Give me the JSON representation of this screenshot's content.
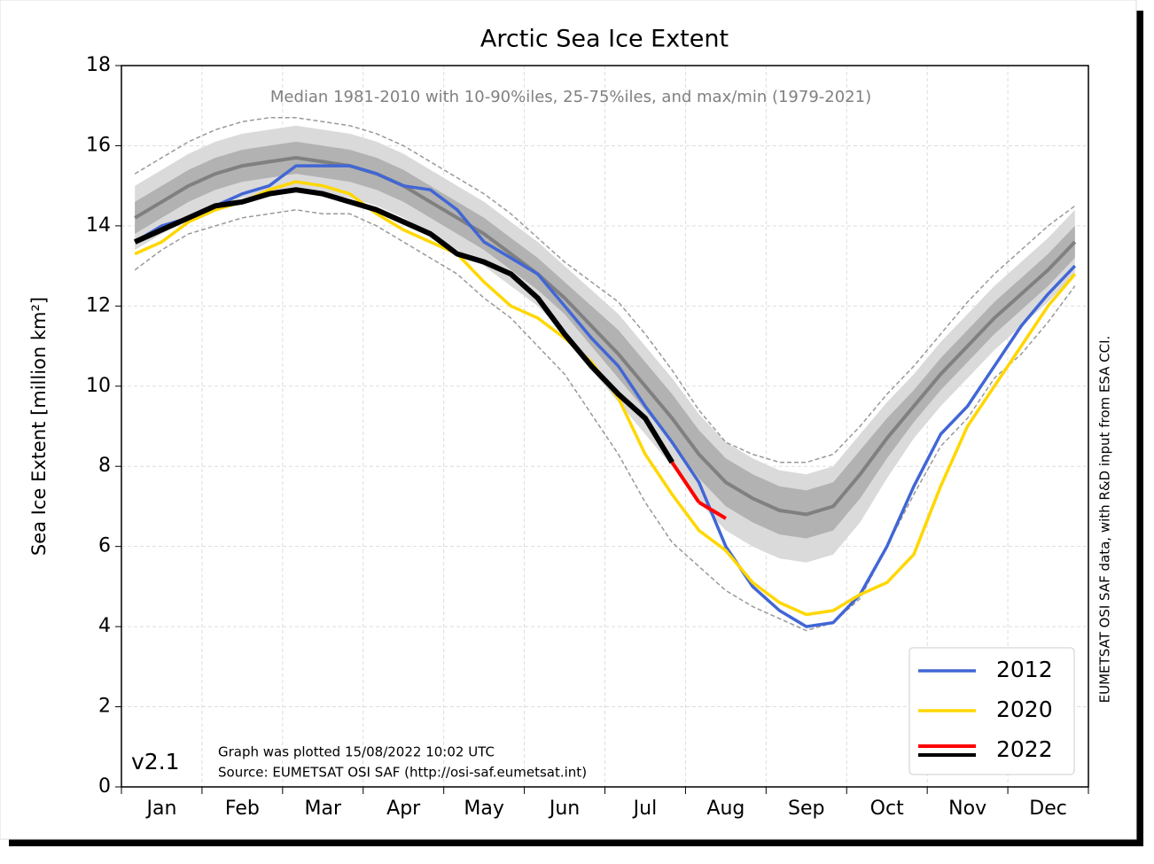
{
  "chart_data": {
    "type": "line",
    "title": "Arctic Sea Ice Extent",
    "subtitle": "Median 1981-2010 with 10-90%iles, 25-75%iles, and max/min (1979-2021)",
    "ylabel": "Sea Ice Extent [million km²]",
    "version": "v2.1",
    "notes": [
      "Graph was plotted 15/08/2022 10:02 UTC",
      "Source: EUMETSAT OSI SAF (http://osi-saf.eumetsat.int)"
    ],
    "side_note": "EUMETSAT OSI SAF data, with R&D input from ESA CCI.",
    "categories": [
      null,
      "Jan",
      null,
      null,
      "Feb",
      null,
      null,
      "Mar",
      null,
      null,
      "Apr",
      null,
      null,
      "May",
      null,
      null,
      "Jun",
      null,
      null,
      "Jul",
      null,
      null,
      "Aug",
      null,
      null,
      "Sep",
      null,
      null,
      "Oct",
      null,
      null,
      "Nov",
      null,
      null,
      "Dec",
      null
    ],
    "ylim": [
      0,
      18
    ],
    "yticks": [
      0,
      2,
      4,
      6,
      8,
      10,
      12,
      14,
      16,
      18
    ],
    "grid": true,
    "legend": "lower right",
    "bands": [
      {
        "color": "#dadada",
        "low": [
          13.4,
          13.8,
          14.2,
          14.5,
          14.7,
          14.8,
          14.9,
          14.8,
          14.7,
          14.5,
          14.2,
          13.8,
          13.4,
          13.0,
          12.5,
          12.0,
          11.3,
          10.4,
          9.6,
          8.8,
          8.0,
          7.1,
          6.4,
          6.0,
          5.7,
          5.6,
          5.8,
          6.6,
          7.7,
          8.7,
          9.5,
          10.2,
          10.9,
          11.5,
          12.1,
          12.8
        ],
        "high": [
          15.0,
          15.4,
          15.8,
          16.1,
          16.3,
          16.4,
          16.5,
          16.4,
          16.3,
          16.1,
          15.8,
          15.4,
          15.0,
          14.6,
          14.1,
          13.6,
          13.0,
          12.4,
          11.8,
          11.0,
          10.2,
          9.3,
          8.6,
          8.2,
          7.9,
          7.8,
          8.0,
          8.8,
          9.6,
          10.3,
          11.1,
          11.8,
          12.5,
          13.1,
          13.7,
          14.4
        ]
      },
      {
        "color": "#b2b2b2",
        "low": [
          13.8,
          14.2,
          14.6,
          14.9,
          15.1,
          15.2,
          15.3,
          15.2,
          15.1,
          14.9,
          14.6,
          14.2,
          13.8,
          13.4,
          12.9,
          12.4,
          11.8,
          11.0,
          10.2,
          9.4,
          8.6,
          7.7,
          7.0,
          6.6,
          6.3,
          6.2,
          6.4,
          7.2,
          8.2,
          9.1,
          9.9,
          10.6,
          11.3,
          11.9,
          12.5,
          13.2
        ],
        "high": [
          14.6,
          15.0,
          15.4,
          15.7,
          15.9,
          16.0,
          16.1,
          16.0,
          15.9,
          15.7,
          15.4,
          15.0,
          14.6,
          14.2,
          13.7,
          13.2,
          12.6,
          12.0,
          11.4,
          10.6,
          9.8,
          8.9,
          8.2,
          7.8,
          7.5,
          7.4,
          7.6,
          8.4,
          9.2,
          9.9,
          10.7,
          11.4,
          12.1,
          12.7,
          13.3,
          14.0
        ]
      }
    ],
    "extremes": {
      "color": "#999999",
      "max": [
        15.3,
        15.7,
        16.1,
        16.4,
        16.6,
        16.7,
        16.7,
        16.6,
        16.5,
        16.3,
        16.0,
        15.6,
        15.2,
        14.8,
        14.3,
        13.7,
        13.1,
        12.6,
        12.1,
        11.3,
        10.4,
        9.4,
        8.6,
        8.3,
        8.1,
        8.1,
        8.3,
        9.0,
        9.8,
        10.5,
        11.3,
        12.1,
        12.8,
        13.4,
        14.0,
        14.5
      ],
      "min": [
        12.9,
        13.4,
        13.8,
        14.0,
        14.2,
        14.3,
        14.4,
        14.3,
        14.3,
        14.0,
        13.6,
        13.2,
        12.8,
        12.2,
        11.7,
        11.0,
        10.3,
        9.3,
        8.3,
        7.1,
        6.1,
        5.5,
        4.9,
        4.5,
        4.2,
        3.9,
        4.1,
        4.7,
        6.0,
        7.3,
        8.5,
        9.2,
        10.2,
        10.8,
        11.6,
        12.5
      ]
    },
    "median": {
      "color": "#808080",
      "values": [
        14.2,
        14.6,
        15.0,
        15.3,
        15.5,
        15.6,
        15.7,
        15.6,
        15.5,
        15.3,
        15.0,
        14.6,
        14.2,
        13.8,
        13.3,
        12.8,
        12.2,
        11.5,
        10.8,
        10.0,
        9.2,
        8.3,
        7.6,
        7.2,
        6.9,
        6.8,
        7.0,
        7.8,
        8.7,
        9.5,
        10.3,
        11.0,
        11.7,
        12.3,
        12.9,
        13.6
      ]
    },
    "series": [
      {
        "name": "2012",
        "color": "#4166d5",
        "values": [
          13.6,
          14.0,
          14.2,
          14.5,
          14.8,
          15.0,
          15.5,
          15.5,
          15.5,
          15.3,
          15.0,
          14.9,
          14.4,
          13.6,
          13.2,
          12.8,
          12.0,
          11.2,
          10.5,
          9.5,
          8.6,
          7.6,
          6.0,
          5.0,
          4.4,
          4.0,
          4.1,
          4.8,
          6.0,
          7.5,
          8.8,
          9.5,
          10.5,
          11.5,
          12.3,
          13.0
        ]
      },
      {
        "name": "2020",
        "color": "#ffd700",
        "values": [
          13.3,
          13.6,
          14.1,
          14.4,
          14.6,
          14.9,
          15.1,
          15.0,
          14.8,
          14.3,
          13.9,
          13.6,
          13.3,
          12.6,
          12.0,
          11.7,
          11.2,
          10.6,
          9.7,
          8.3,
          7.3,
          6.4,
          5.9,
          5.1,
          4.6,
          4.3,
          4.4,
          4.8,
          5.1,
          5.8,
          7.5,
          9.0,
          10.0,
          11.0,
          12.0,
          12.8
        ]
      },
      {
        "name": "2022",
        "color": "#000000",
        "recent_color": "#ff0000",
        "values": [
          13.6,
          13.9,
          14.2,
          14.5,
          14.6,
          14.8,
          14.9,
          14.8,
          14.6,
          14.4,
          14.1,
          13.8,
          13.3,
          13.1,
          12.8,
          12.2,
          11.3,
          10.5,
          9.8,
          9.2,
          8.1,
          null,
          null,
          null,
          null,
          null,
          null,
          null,
          null,
          null,
          null,
          null,
          null,
          null,
          null,
          null
        ],
        "recent_values": [
          null,
          null,
          null,
          null,
          null,
          null,
          null,
          null,
          null,
          null,
          null,
          null,
          null,
          null,
          null,
          null,
          null,
          null,
          null,
          null,
          null,
          7.1,
          6.7,
          null,
          null,
          null,
          null,
          null,
          null,
          null,
          null,
          null,
          null,
          null,
          null,
          null
        ]
      }
    ]
  }
}
